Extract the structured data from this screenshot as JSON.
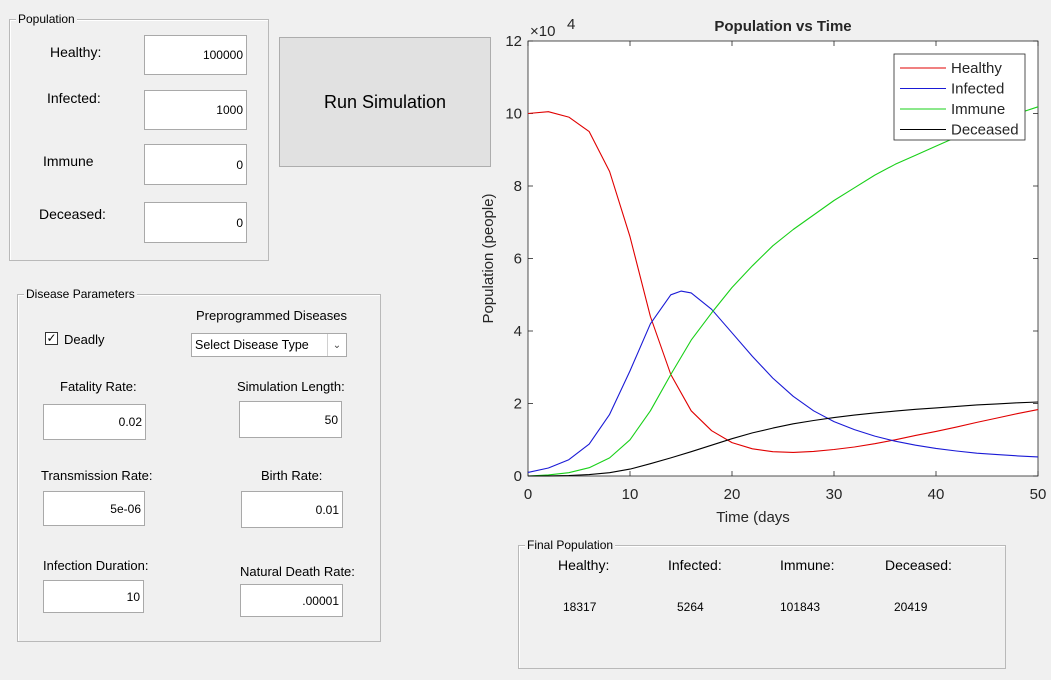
{
  "population": {
    "title": "Population",
    "fields": [
      {
        "label": "Healthy:",
        "value": "100000"
      },
      {
        "label": "Infected:",
        "value": "1000"
      },
      {
        "label": "Immune",
        "value": "0"
      },
      {
        "label": "Deceased:",
        "value": "0"
      }
    ]
  },
  "run_button": "Run Simulation",
  "disease": {
    "title": "Disease Parameters",
    "deadly_label": "Deadly",
    "deadly_checked": true,
    "preprogrammed_label": "Preprogrammed Diseases",
    "select_value": "Select Disease Type",
    "fatality_label": "Fatality Rate:",
    "fatality_value": "0.02",
    "sim_length_label": "Simulation Length:",
    "sim_length_value": "50",
    "transmission_label": "Transmission Rate:",
    "transmission_value": "5e-06",
    "birth_label": "Birth Rate:",
    "birth_value": "0.01",
    "duration_label": "Infection Duration:",
    "duration_value": "10",
    "natural_death_label": "Natural Death Rate:",
    "natural_death_value": ".00001"
  },
  "final": {
    "title": "Final Population",
    "headers": [
      "Healthy:",
      "Infected:",
      "Immune:",
      "Deceased:"
    ],
    "values": [
      "18317",
      "5264",
      "101843",
      "20419"
    ]
  },
  "chart_data": {
    "type": "line",
    "title": "Population vs Time",
    "xlabel": "Time (days",
    "ylabel": "Population (people)",
    "exponent_label": "×10",
    "exponent_power": "4",
    "xlim": [
      0,
      50
    ],
    "ylim": [
      0,
      120000
    ],
    "xticks": [
      0,
      10,
      20,
      30,
      40,
      50
    ],
    "yticks": [
      0,
      20000,
      40000,
      60000,
      80000,
      100000,
      120000
    ],
    "ytick_labels": [
      "0",
      "2",
      "4",
      "6",
      "8",
      "10",
      "12"
    ],
    "legend_position": "top-right",
    "series": [
      {
        "name": "Healthy",
        "color": "#e00000",
        "x": [
          0,
          2,
          4,
          6,
          8,
          10,
          12,
          14,
          16,
          18,
          20,
          22,
          24,
          26,
          28,
          30,
          32,
          34,
          36,
          38,
          40,
          42,
          44,
          46,
          48,
          50
        ],
        "values": [
          100000,
          100500,
          99000,
          95000,
          84000,
          66000,
          44000,
          28000,
          18000,
          12500,
          9200,
          7500,
          6700,
          6500,
          6800,
          7300,
          8000,
          8900,
          10000,
          11200,
          12300,
          13500,
          14800,
          16000,
          17200,
          18317
        ]
      },
      {
        "name": "Infected",
        "color": "#1a1ad6",
        "x": [
          0,
          2,
          4,
          6,
          8,
          10,
          12,
          14,
          15,
          16,
          18,
          20,
          22,
          24,
          26,
          28,
          30,
          32,
          34,
          36,
          38,
          40,
          42,
          44,
          46,
          48,
          50
        ],
        "values": [
          1000,
          2200,
          4500,
          8800,
          17000,
          29000,
          42000,
          50000,
          51000,
          50500,
          46000,
          39500,
          33000,
          27000,
          22000,
          18000,
          15000,
          12800,
          11000,
          9600,
          8500,
          7600,
          6900,
          6300,
          5900,
          5550,
          5264
        ]
      },
      {
        "name": "Immune",
        "color": "#19d019",
        "x": [
          0,
          2,
          4,
          6,
          8,
          10,
          12,
          14,
          16,
          18,
          20,
          22,
          24,
          26,
          28,
          30,
          32,
          34,
          36,
          38,
          40,
          42,
          44,
          46,
          48,
          50
        ],
        "values": [
          0,
          300,
          900,
          2300,
          5000,
          10000,
          18000,
          28000,
          37500,
          45000,
          52000,
          58000,
          63500,
          68000,
          72000,
          76000,
          79500,
          83000,
          86000,
          88500,
          91000,
          93500,
          96000,
          98000,
          100000,
          101843
        ]
      },
      {
        "name": "Deceased",
        "color": "#000000",
        "x": [
          0,
          2,
          4,
          6,
          8,
          10,
          12,
          14,
          16,
          18,
          20,
          22,
          24,
          26,
          28,
          30,
          32,
          34,
          36,
          38,
          40,
          42,
          44,
          46,
          48,
          50
        ],
        "values": [
          0,
          40,
          140,
          380,
          900,
          1900,
          3400,
          5000,
          6700,
          8500,
          10300,
          11900,
          13200,
          14400,
          15300,
          16100,
          16800,
          17400,
          17900,
          18400,
          18800,
          19200,
          19600,
          19900,
          20200,
          20419
        ]
      }
    ]
  }
}
